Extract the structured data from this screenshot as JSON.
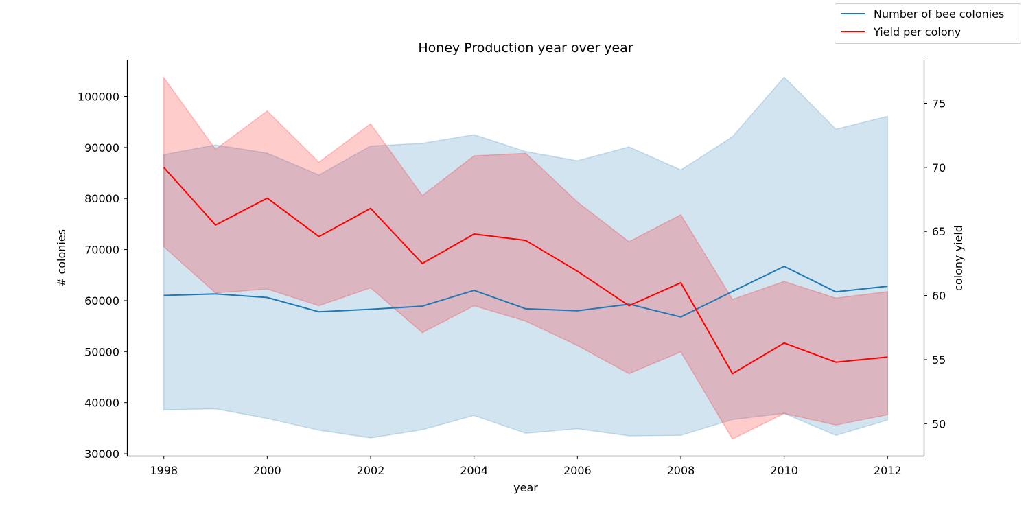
{
  "chart_data": {
    "type": "line",
    "title": "Honey Production year over year",
    "xlabel": "year",
    "ylabel_left": "# colonies",
    "ylabel_right": "colony yield",
    "x": [
      1998,
      1999,
      2000,
      2001,
      2002,
      2003,
      2004,
      2005,
      2006,
      2007,
      2008,
      2009,
      2010,
      2011,
      2012
    ],
    "x_ticks": [
      "1998",
      "2000",
      "2002",
      "2004",
      "2006",
      "2008",
      "2010",
      "2012"
    ],
    "xlim": [
      1997.3,
      2012.7
    ],
    "y_left_ticks": [
      "30000",
      "40000",
      "50000",
      "60000",
      "70000",
      "80000",
      "90000",
      "100000"
    ],
    "ylim_left": [
      29600,
      107200
    ],
    "y_right_ticks": [
      "50",
      "55",
      "60",
      "65",
      "70",
      "75"
    ],
    "ylim_right": [
      47.5,
      78.4
    ],
    "grid": false,
    "legend_position": "top-right (outside plot)",
    "series": [
      {
        "name": "Number of bee colonies",
        "axis": "left",
        "color": "#1f77b4",
        "values": [
          61000,
          61300,
          60600,
          57800,
          58300,
          58900,
          62000,
          58400,
          58000,
          59300,
          56800,
          61800,
          66700,
          61700,
          62800
        ],
        "ci_lower": [
          38600,
          38800,
          36900,
          34600,
          33100,
          34700,
          37500,
          34000,
          34900,
          33500,
          33600,
          36700,
          37900,
          33600,
          36600
        ],
        "ci_upper": [
          88600,
          90500,
          88900,
          84600,
          90300,
          90800,
          92500,
          89200,
          87400,
          90100,
          85600,
          92100,
          103800,
          93600,
          96100
        ]
      },
      {
        "name": "Yield per colony",
        "axis": "right",
        "color": "#ff0000",
        "values": [
          70.0,
          65.5,
          67.6,
          64.6,
          66.8,
          62.5,
          64.8,
          64.3,
          61.9,
          59.2,
          61.0,
          53.9,
          56.3,
          54.8,
          55.2
        ],
        "ci_lower": [
          63.8,
          60.2,
          60.5,
          59.2,
          60.6,
          57.1,
          59.2,
          58.0,
          56.1,
          53.9,
          55.6,
          48.8,
          50.8,
          49.9,
          50.7
        ],
        "ci_upper": [
          77.0,
          71.4,
          74.4,
          70.4,
          73.4,
          67.8,
          70.9,
          71.1,
          67.3,
          64.2,
          66.3,
          59.7,
          61.1,
          59.8,
          60.3
        ]
      }
    ]
  }
}
